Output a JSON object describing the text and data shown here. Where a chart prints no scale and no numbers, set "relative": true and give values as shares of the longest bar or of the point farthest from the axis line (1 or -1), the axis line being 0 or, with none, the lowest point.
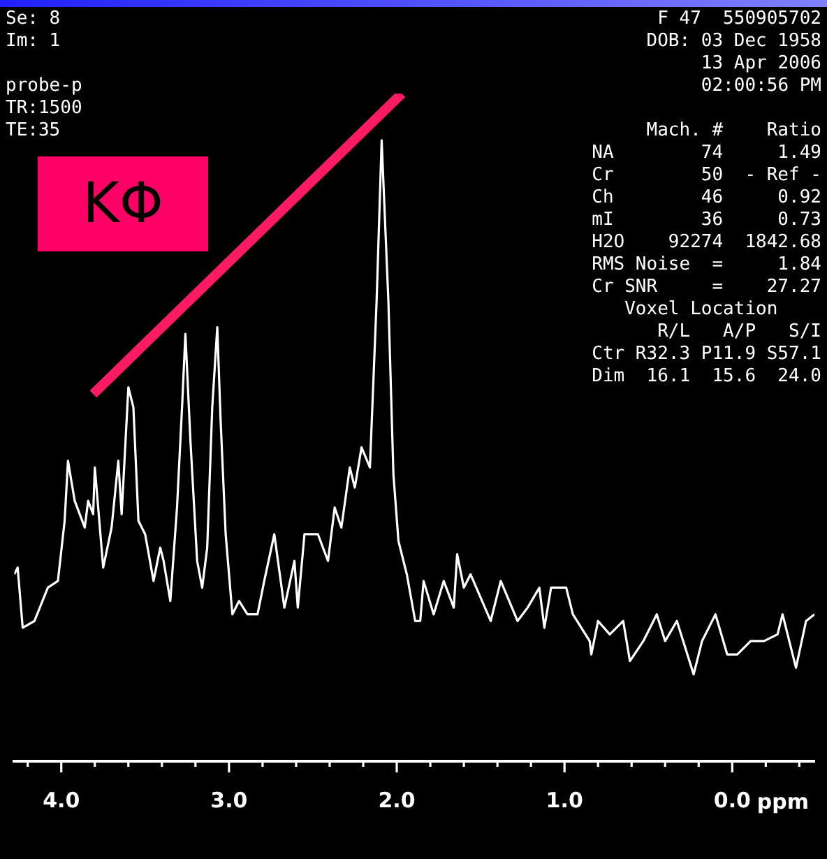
{
  "chart_data": {
    "type": "line",
    "xlabel": "ppm",
    "relative": true,
    "legend": false,
    "grid": false,
    "marker": "none",
    "xlim": [
      4.28,
      -0.49
    ],
    "xticks": [
      {
        "value": 4.2,
        "label": null
      },
      {
        "value": 4,
        "label": "4.0"
      },
      {
        "value": 3.8,
        "label": null
      },
      {
        "value": 3.6,
        "label": null
      },
      {
        "value": 3.4,
        "label": null
      },
      {
        "value": 3.2,
        "label": null
      },
      {
        "value": 3,
        "label": "3.0"
      },
      {
        "value": 2.8,
        "label": null
      },
      {
        "value": 2.6,
        "label": null
      },
      {
        "value": 2.4,
        "label": null
      },
      {
        "value": 2.2,
        "label": null
      },
      {
        "value": 2,
        "label": "2.0"
      },
      {
        "value": 1.8,
        "label": null
      },
      {
        "value": 1.6,
        "label": null
      },
      {
        "value": 1.4,
        "label": null
      },
      {
        "value": 1.2,
        "label": null
      },
      {
        "value": 1,
        "label": "1.0"
      },
      {
        "value": 0.8,
        "label": null
      },
      {
        "value": 0.6,
        "label": null
      },
      {
        "value": 0.4,
        "label": null
      },
      {
        "value": 0.2,
        "label": null
      },
      {
        "value": 0,
        "label": "0.0"
      },
      {
        "value": -0.2,
        "label": null
      },
      {
        "value": -0.4,
        "label": null
      }
    ],
    "annotations": [
      "Se: 8\nIm: 1\n\nprobe-p\nTR:1500\nTE:35",
      "KΦ",
      "F 47  550905702\nDOB: 03 Dec 1958\n13 Apr 2006\n02:00:56 PM\n\n     Mach. #    Ratio\nNA        74     1.49\nCr        50  - Ref -\nCh        46     0.92\nmI        36     0.73\nH2O    92274  1842.68\nRMS Noise  =     1.84\nCr SNR     =    27.27\n   Voxel Location    \n      R/L   A/P   S/I\nCtr R32.3 P11.9 S57.1\nDim  16.1  15.6  24.0"
    ],
    "series": [
      {
        "color": "#ffffff",
        "x": [
          4.28,
          4.26,
          4.23,
          4.16,
          4.08,
          4.02,
          3.98,
          3.96,
          3.92,
          3.86,
          3.84,
          3.81,
          3.8,
          3.75,
          3.7,
          3.66,
          3.64,
          3.6,
          3.57,
          3.54,
          3.5,
          3.45,
          3.41,
          3.39,
          3.35,
          3.31,
          3.28,
          3.26,
          3.23,
          3.19,
          3.16,
          3.13,
          3.1,
          3.07,
          3.05,
          3.02,
          2.98,
          2.94,
          2.89,
          2.83,
          2.79,
          2.73,
          2.67,
          2.61,
          2.59,
          2.55,
          2.47,
          2.41,
          2.37,
          2.33,
          2.28,
          2.25,
          2.21,
          2.16,
          2.12,
          2.09,
          2.05,
          2.02,
          1.99,
          1.94,
          1.89,
          1.86,
          1.84,
          1.78,
          1.72,
          1.66,
          1.64,
          1.6,
          1.56,
          1.44,
          1.38,
          1.28,
          1.22,
          1.15,
          1.12,
          1.08,
          0.99,
          0.95,
          0.85,
          0.84,
          0.8,
          0.73,
          0.65,
          0.61,
          0.53,
          0.45,
          0.4,
          0.33,
          0.23,
          0.18,
          0.1,
          0.03,
          -0.03,
          -0.11,
          -0.19,
          -0.27,
          -0.3,
          -0.38,
          -0.44,
          -0.49
        ],
        "values": [
          0.28,
          0.29,
          0.2,
          0.21,
          0.26,
          0.27,
          0.36,
          0.45,
          0.39,
          0.35,
          0.39,
          0.37,
          0.44,
          0.29,
          0.35,
          0.45,
          0.37,
          0.56,
          0.53,
          0.36,
          0.34,
          0.27,
          0.32,
          0.3,
          0.24,
          0.38,
          0.53,
          0.64,
          0.48,
          0.3,
          0.26,
          0.32,
          0.53,
          0.65,
          0.51,
          0.34,
          0.22,
          0.24,
          0.22,
          0.22,
          0.27,
          0.34,
          0.23,
          0.3,
          0.23,
          0.34,
          0.34,
          0.3,
          0.38,
          0.35,
          0.44,
          0.41,
          0.47,
          0.44,
          0.69,
          0.93,
          0.69,
          0.43,
          0.33,
          0.28,
          0.21,
          0.21,
          0.27,
          0.22,
          0.27,
          0.23,
          0.31,
          0.26,
          0.28,
          0.21,
          0.27,
          0.21,
          0.23,
          0.26,
          0.2,
          0.26,
          0.26,
          0.22,
          0.18,
          0.16,
          0.21,
          0.19,
          0.21,
          0.15,
          0.18,
          0.22,
          0.18,
          0.21,
          0.13,
          0.18,
          0.22,
          0.16,
          0.16,
          0.18,
          0.18,
          0.19,
          0.22,
          0.14,
          0.21,
          0.22
        ]
      },
      {
        "type": "line",
        "color": "#ff1a66",
        "x": [
          3.81,
          1.97
        ],
        "values": [
          0.55,
          1
        ]
      }
    ]
  }
}
